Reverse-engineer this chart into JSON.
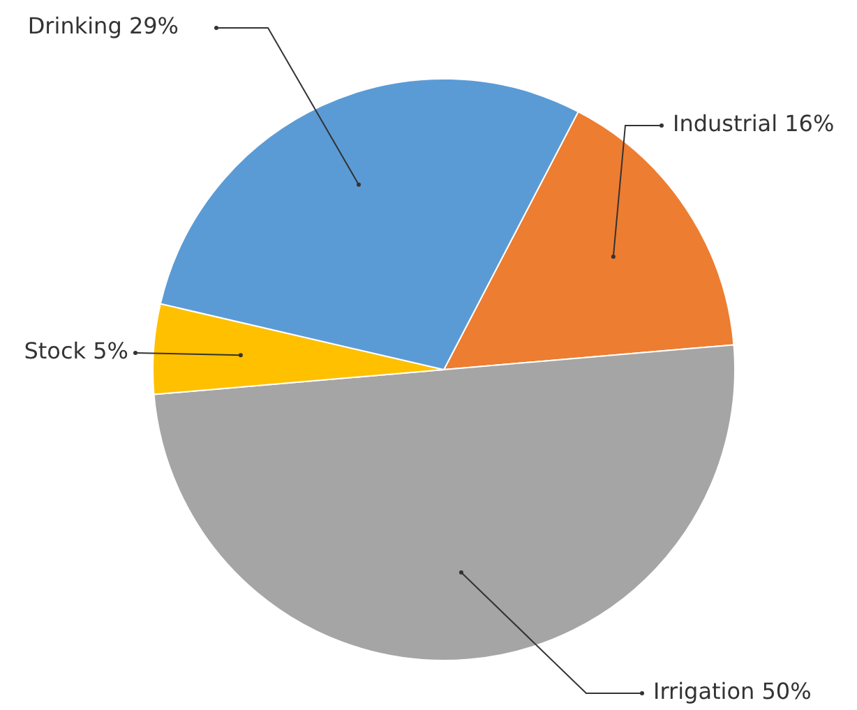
{
  "chart_data": {
    "type": "pie",
    "categories": [
      "Industrial",
      "Irrigation",
      "Stock",
      "Drinking"
    ],
    "values": [
      16,
      50,
      5,
      29
    ],
    "colors": [
      "#ed7d31",
      "#a5a5a5",
      "#ffc000",
      "#5b9bd5"
    ],
    "value_labels": [
      "16%",
      "50%",
      "5%",
      "29%"
    ],
    "legend": false
  }
}
